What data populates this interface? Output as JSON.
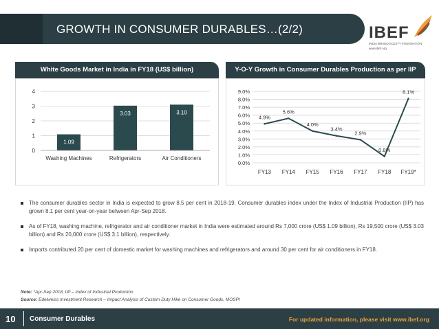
{
  "header": {
    "title": "GROWTH IN CONSUMER DURABLES…(2/2)",
    "logo": {
      "word": "IBEF",
      "subtitle": "INDIA BRAND EQUITY FOUNDATION",
      "url": "www.ibef.org"
    }
  },
  "panels": {
    "left_title": "White Goods Market in India in FY18 (US$ billion)",
    "right_title": "Y-O-Y Growth in Consumer Durables Production as per IIP"
  },
  "chart_data": [
    {
      "type": "bar",
      "title": "White Goods Market in India in FY18 (US$ billion)",
      "categories": [
        "Washing Machines",
        "Refrigerators",
        "Air Conditioners"
      ],
      "values": [
        1.09,
        3.03,
        3.1
      ],
      "value_labels": [
        "1.09",
        "3.03",
        "3.10"
      ],
      "ylim": [
        0,
        4
      ],
      "yticks": [
        "0",
        "1",
        "2",
        "3",
        "4"
      ],
      "grid": true,
      "color": "#2b4a4d"
    },
    {
      "type": "line",
      "title": "Y-O-Y Growth in Consumer Durables Production as per IIP",
      "categories": [
        "FY13",
        "FY14",
        "FY15",
        "FY16",
        "FY17",
        "FY18",
        "FY19*"
      ],
      "values": [
        4.9,
        5.6,
        4.0,
        3.4,
        2.9,
        0.8,
        8.1
      ],
      "value_labels": [
        "4.9%",
        "5.6%",
        "4.0%",
        "3.4%",
        "2.9%",
        "0.8%",
        "8.1%"
      ],
      "ylim": [
        0,
        9
      ],
      "yticks": [
        "0.0%",
        "1.0%",
        "2.0%",
        "3.0%",
        "4.0%",
        "5.0%",
        "6.0%",
        "7.0%",
        "8.0%",
        "9.0%"
      ],
      "grid": true,
      "color": "#2b4a4d"
    }
  ],
  "bullets": [
    "The consumer durables sector in India is expected to grow 8.5 per cent in 2018-19. Consumer durables index under the Index of Industrial Production (IIP) has grown 8.1 per cent year-on-year between Apr-Sep 2018.",
    "As of FY18, washing machine, refrigerator and air conditioner market in India were estimated around Rs 7,000 crore (US$ 1.09 billion), Rs 19,500 crore (US$ 3.03 billion) and Rs 20,000 crore (US$ 3.1 billion), respectively.",
    "Imports contributed 20 per cent of domestic market for washing machines and refrigerators and around 30 per cent for air conditioners in FY18."
  ],
  "note": {
    "label": "Note:",
    "text": " *Apr-Sep 2018, IIP – Index of Industrial Production"
  },
  "source": {
    "label": "Source:",
    "text": " Edelweiss Investment Research – Impact Analysis of Custom Duty Hike on Consumer Goods, MOSPI"
  },
  "footer": {
    "page": "10",
    "section": "Consumer Durables",
    "right_text": "For updated information, please visit www.ibef.org"
  }
}
